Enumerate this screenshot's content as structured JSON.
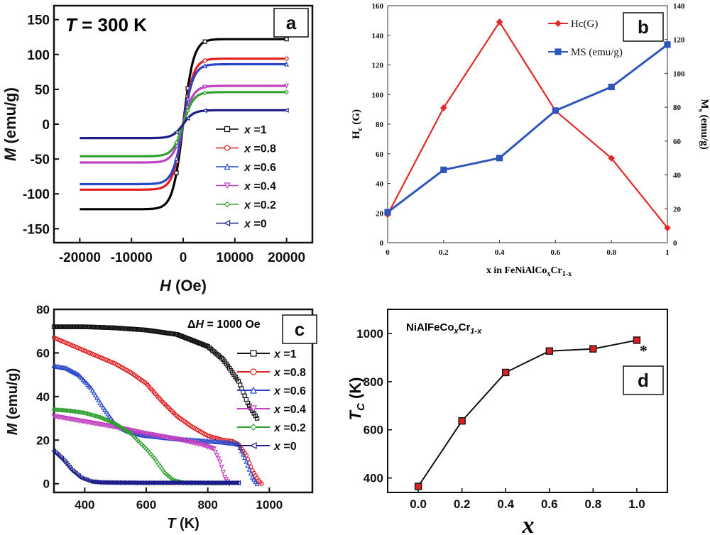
{
  "chart_data": [
    {
      "panel": "a",
      "type": "line",
      "annotation": "T = 300 K",
      "annotation_parts": {
        "var": "T",
        "rest": " = 300 K"
      },
      "xlabel": "H (Oe)",
      "xlabel_parts": {
        "var": "H",
        "unit": " (Oe)"
      },
      "ylabel": "M (emu/g)",
      "ylabel_parts": {
        "var": "M",
        "unit": " (emu/g)"
      },
      "xlim": [
        -25000,
        25000
      ],
      "ylim": [
        -170,
        170
      ],
      "xticks": [
        -20000,
        -10000,
        0,
        10000,
        20000
      ],
      "xtick_labels": [
        "-20000",
        "-10000",
        "0",
        "10000",
        "20000"
      ],
      "yticks": [
        -150,
        -100,
        -50,
        0,
        50,
        100,
        150
      ],
      "ytick_labels": [
        "-150",
        "-100",
        "-50",
        "0",
        "50",
        "100",
        "150"
      ],
      "legend_position": "center-right",
      "series": [
        {
          "name": "x =1",
          "name_var": "x",
          "name_val": " =1",
          "color": "#000000",
          "saturation_ms": 122,
          "marker": "square"
        },
        {
          "name": "x =0.8",
          "name_var": "x",
          "name_val": " =0.8",
          "color": "#e02020",
          "saturation_ms": 94,
          "marker": "circle"
        },
        {
          "name": "x =0.6",
          "name_var": "x",
          "name_val": " =0.6",
          "color": "#2a45c8",
          "saturation_ms": 86,
          "marker": "triangle-up"
        },
        {
          "name": "x =0.4",
          "name_var": "x",
          "name_val": " =0.4",
          "color": "#c040c0",
          "saturation_ms": 55,
          "marker": "triangle-down"
        },
        {
          "name": "x =0.2",
          "name_var": "x",
          "name_val": " =0.2",
          "color": "#30a030",
          "saturation_ms": 46,
          "marker": "diamond"
        },
        {
          "name": "x =0",
          "name_var": "x",
          "name_val": " =0",
          "color": "#1c1c8a",
          "saturation_ms": 20,
          "marker": "triangle-left"
        }
      ]
    },
    {
      "panel": "b",
      "type": "line",
      "xlabel": "x in FeNiAlCoxCr1-x",
      "xlabel_parts": {
        "main": "x in FeNiAlCo",
        "sub1": "x",
        "mid": "Cr",
        "sub2": "1-x"
      },
      "ylabel_left": "Hc (G)",
      "ylabel_left_parts": {
        "main": "H",
        "sub": "c",
        "unit": " (G)"
      },
      "ylabel_right": "Ms (emu/g)",
      "ylabel_right_parts": {
        "main": "M",
        "sub": "s",
        "unit": " (emu/g)"
      },
      "x": [
        0,
        0.2,
        0.4,
        0.6,
        0.8,
        1
      ],
      "xtick_labels": [
        "0",
        "0.2",
        "0.4",
        "0.6",
        "0.8",
        "1"
      ],
      "ylim_left": [
        0,
        160
      ],
      "yticks_left": [
        "0",
        "20",
        "40",
        "60",
        "80",
        "100",
        "120",
        "140",
        "160"
      ],
      "ylim_right": [
        0,
        140
      ],
      "yticks_right": [
        "0",
        "20",
        "40",
        "60",
        "80",
        "100",
        "120",
        "140"
      ],
      "legend_position": "top-right",
      "series": [
        {
          "name": "Hc(G)",
          "axis": "left",
          "color": "#e02a2a",
          "values": [
            19,
            91,
            149,
            89,
            57,
            10
          ]
        },
        {
          "name": "MS (emu/g)",
          "axis": "right",
          "color": "#2f55b8",
          "values": [
            18,
            43,
            50,
            78,
            92,
            117
          ]
        }
      ]
    },
    {
      "panel": "c",
      "type": "line",
      "annotation": "ΔH = 1000 Oe",
      "annotation_parts": {
        "pre": "Δ",
        "var": "H",
        "rest": " = 1000 Oe"
      },
      "xlabel": "T (K)",
      "xlabel_parts": {
        "var": "T",
        "unit": " (K)"
      },
      "ylabel": "M (emu/g)",
      "ylabel_parts": {
        "var": "M",
        "unit": " (emu/g)"
      },
      "xlim": [
        300,
        1140
      ],
      "ylim": [
        -4,
        80
      ],
      "xticks": [
        400,
        600,
        800,
        1000
      ],
      "xtick_labels": [
        "400",
        "600",
        "800",
        "1000"
      ],
      "yticks": [
        0,
        20,
        40,
        60,
        80
      ],
      "ytick_labels": [
        "0",
        "20",
        "40",
        "60",
        "80"
      ],
      "legend_position": "right",
      "series": [
        {
          "name": "x =1",
          "name_var": "x",
          "name_val": " =1",
          "color": "#111111",
          "marker": "square",
          "T": [
            300,
            400,
            500,
            600,
            700,
            800,
            850,
            900,
            930,
            960
          ],
          "M": [
            72,
            72,
            71.5,
            70.5,
            68.5,
            63,
            57,
            47,
            37,
            30
          ]
        },
        {
          "name": "x =0.8",
          "name_var": "x",
          "name_val": " =0.8",
          "color": "#e02020",
          "marker": "circle",
          "T": [
            300,
            350,
            400,
            450,
            500,
            550,
            600,
            650,
            700,
            750,
            800,
            850,
            880,
            900,
            925,
            945,
            965,
            975
          ],
          "M": [
            67,
            64,
            61,
            58,
            55,
            51,
            46,
            38,
            31,
            26,
            22,
            20,
            19.5,
            18,
            13,
            6,
            1.5,
            0
          ]
        },
        {
          "name": "x =0.6",
          "name_var": "x",
          "name_val": " =0.6",
          "color": "#2a45c8",
          "marker": "triangle-up",
          "T": [
            300,
            340,
            380,
            420,
            460,
            500,
            540,
            580,
            600,
            700,
            800,
            850,
            880,
            900,
            920,
            945,
            960
          ],
          "M": [
            54,
            53,
            50,
            44,
            35,
            27,
            24,
            22.5,
            22,
            20.5,
            19.5,
            19,
            18.5,
            18,
            12,
            3,
            0
          ]
        },
        {
          "name": "x =0.4",
          "name_var": "x",
          "name_val": " =0.4",
          "color": "#c040c0",
          "marker": "triangle-down",
          "T": [
            300,
            400,
            500,
            600,
            700,
            780,
            820,
            840,
            855,
            870
          ],
          "M": [
            31,
            28.5,
            26,
            23,
            20.5,
            18,
            16,
            10,
            3,
            0
          ]
        },
        {
          "name": "x =0.2",
          "name_var": "x",
          "name_val": " =0.2",
          "color": "#30a030",
          "marker": "diamond",
          "T": [
            300,
            350,
            400,
            450,
            500,
            550,
            600,
            630,
            660,
            690,
            720,
            800,
            860
          ],
          "M": [
            34,
            33.5,
            32.5,
            30.5,
            27.5,
            23,
            16,
            11,
            5,
            1.5,
            0.5,
            0.3,
            0.3
          ]
        },
        {
          "name": "x =0",
          "name_var": "x",
          "name_val": " =0",
          "color": "#1c1c8a",
          "marker": "triangle-left",
          "T": [
            300,
            330,
            360,
            390,
            420,
            450,
            500,
            600,
            700,
            800,
            900
          ],
          "M": [
            15,
            11,
            6,
            2.5,
            1,
            0.6,
            0.5,
            0.4,
            0.4,
            0.4,
            0.4
          ]
        }
      ]
    },
    {
      "panel": "d",
      "type": "line",
      "annotation": "NiAlFeCoxCr1-x",
      "annotation_parts": {
        "main": "NiAlFeCo",
        "sub1": "x",
        "mid": "Cr",
        "sub2": "1-x"
      },
      "xlabel": "x",
      "ylabel": "TC (K)",
      "ylabel_parts": {
        "var": "T",
        "sub": "C",
        "unit": " (K)"
      },
      "x": [
        0.0,
        0.2,
        0.4,
        0.6,
        0.8,
        1.0
      ],
      "xlim": [
        -0.14,
        1.14
      ],
      "xtick_labels": [
        "0.0",
        "0.2",
        "0.4",
        "0.6",
        "0.8",
        "1.0"
      ],
      "ylim": [
        340,
        1100
      ],
      "yticks": [
        400,
        600,
        800,
        1000
      ],
      "ytick_labels": [
        "400",
        "600",
        "800",
        "1000"
      ],
      "values": [
        365,
        637,
        838,
        927,
        936,
        972
      ],
      "color": "#111111",
      "marker_color": "#e02020",
      "extra_mark": "*"
    }
  ],
  "panel_labels": {
    "a": "a",
    "b": "b",
    "c": "c",
    "d": "d"
  }
}
